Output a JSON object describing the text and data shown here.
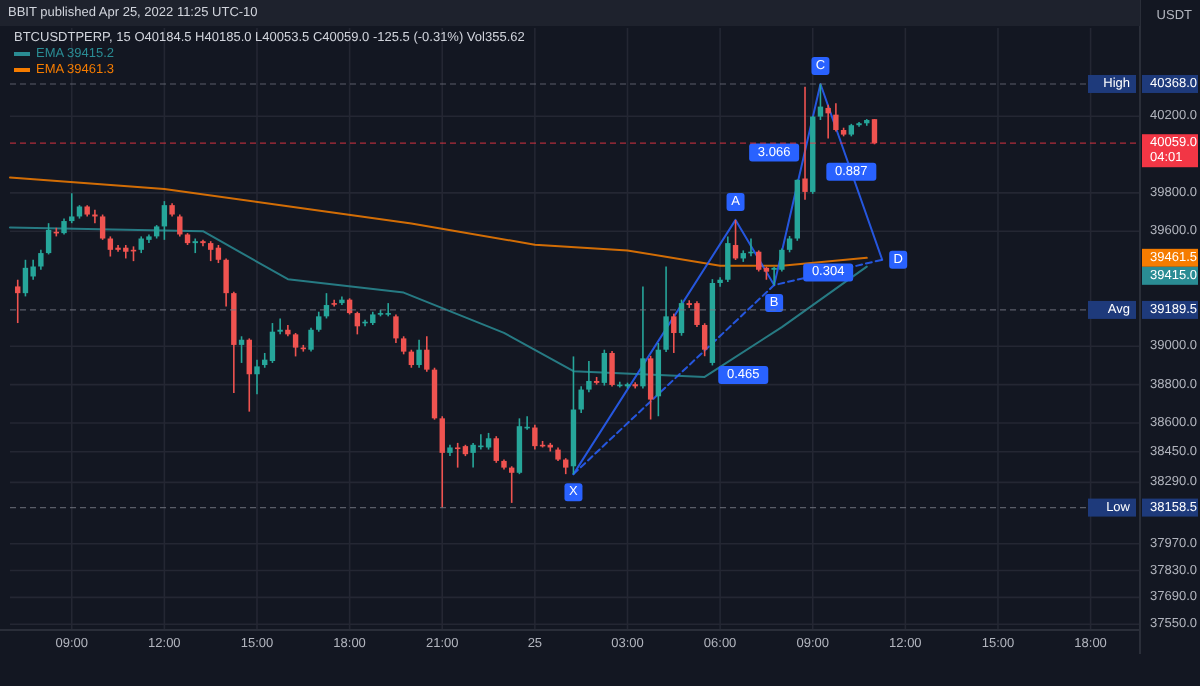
{
  "chart_data": {
    "type": "candlestick",
    "title": "BBIT published Apr 25, 2022 11:25 UTC-10",
    "subtitle": "BTCUSDTPERP, 15  O40184.5 H40185.0 L40053.5 C40059.0 -125.5 (-0.31%) Vol355.62",
    "ylabel": "USDT",
    "x": [
      "2022-04-24T07:15",
      "2022-04-24T07:30",
      "2022-04-24T07:45",
      "2022-04-24T08:00",
      "2022-04-24T08:15",
      "2022-04-24T08:30",
      "2022-04-24T08:45",
      "2022-04-24T09:00",
      "2022-04-24T09:15",
      "2022-04-24T09:30",
      "2022-04-24T09:45",
      "2022-04-24T10:00",
      "2022-04-24T10:15",
      "2022-04-24T10:30",
      "2022-04-24T10:45",
      "2022-04-24T11:00",
      "2022-04-24T11:15",
      "2022-04-24T11:30",
      "2022-04-24T11:45",
      "2022-04-24T12:00",
      "2022-04-24T12:15",
      "2022-04-24T12:30",
      "2022-04-24T12:45",
      "2022-04-24T13:00",
      "2022-04-24T13:15",
      "2022-04-24T13:30",
      "2022-04-24T13:45",
      "2022-04-24T14:00",
      "2022-04-24T14:15",
      "2022-04-24T14:30",
      "2022-04-24T14:45",
      "2022-04-24T15:00",
      "2022-04-24T15:15",
      "2022-04-24T15:30",
      "2022-04-24T15:45",
      "2022-04-24T16:00",
      "2022-04-24T16:15",
      "2022-04-24T16:30",
      "2022-04-24T16:45",
      "2022-04-24T17:00",
      "2022-04-24T17:15",
      "2022-04-24T17:30",
      "2022-04-24T17:45",
      "2022-04-24T18:00",
      "2022-04-24T18:15",
      "2022-04-24T18:30",
      "2022-04-24T18:45",
      "2022-04-24T19:00",
      "2022-04-24T19:15",
      "2022-04-24T19:30",
      "2022-04-24T19:45",
      "2022-04-24T20:00",
      "2022-04-24T20:15",
      "2022-04-24T20:30",
      "2022-04-24T20:45",
      "2022-04-24T21:00",
      "2022-04-24T21:15",
      "2022-04-24T21:30",
      "2022-04-24T21:45",
      "2022-04-24T22:00",
      "2022-04-24T22:15",
      "2022-04-24T22:30",
      "2022-04-24T22:45",
      "2022-04-24T23:00",
      "2022-04-24T23:15",
      "2022-04-24T23:30",
      "2022-04-24T23:45",
      "2022-04-25T00:00",
      "2022-04-25T00:15",
      "2022-04-25T00:30",
      "2022-04-25T00:45",
      "2022-04-25T01:00",
      "2022-04-25T01:15",
      "2022-04-25T01:30",
      "2022-04-25T01:45",
      "2022-04-25T02:00",
      "2022-04-25T02:15",
      "2022-04-25T02:30",
      "2022-04-25T02:45",
      "2022-04-25T03:00",
      "2022-04-25T03:15",
      "2022-04-25T03:30",
      "2022-04-25T03:45",
      "2022-04-25T04:00",
      "2022-04-25T04:15",
      "2022-04-25T04:30",
      "2022-04-25T04:45",
      "2022-04-25T05:00",
      "2022-04-25T05:15",
      "2022-04-25T05:30",
      "2022-04-25T05:45",
      "2022-04-25T06:00",
      "2022-04-25T06:15",
      "2022-04-25T06:30",
      "2022-04-25T06:45",
      "2022-04-25T07:00",
      "2022-04-25T07:15",
      "2022-04-25T07:30",
      "2022-04-25T07:45",
      "2022-04-25T08:00",
      "2022-04-25T08:15",
      "2022-04-25T08:30",
      "2022-04-25T08:45",
      "2022-04-25T09:00",
      "2022-04-25T09:15",
      "2022-04-25T09:30",
      "2022-04-25T09:45",
      "2022-04-25T10:00",
      "2022-04-25T10:15",
      "2022-04-25T10:30",
      "2022-04-25T10:45",
      "2022-04-25T11:00"
    ],
    "ohlc": [
      [
        39312,
        39347,
        39121,
        39277
      ],
      [
        39277,
        39451,
        39260,
        39409
      ],
      [
        39364,
        39451,
        39347,
        39416
      ],
      [
        39416,
        39503,
        39399,
        39486
      ],
      [
        39486,
        39642,
        39479,
        39607
      ],
      [
        39597,
        39618,
        39573,
        39590
      ],
      [
        39590,
        39666,
        39583,
        39653
      ],
      [
        39653,
        39798,
        39642,
        39677
      ],
      [
        39677,
        39736,
        39666,
        39729
      ],
      [
        39729,
        39736,
        39677,
        39687
      ],
      [
        39687,
        39712,
        39642,
        39677
      ],
      [
        39677,
        39687,
        39555,
        39562
      ],
      [
        39562,
        39573,
        39468,
        39503
      ],
      [
        39514,
        39528,
        39493,
        39503
      ],
      [
        39514,
        39528,
        39458,
        39493
      ],
      [
        39503,
        39521,
        39444,
        39500
      ],
      [
        39503,
        39573,
        39486,
        39562
      ],
      [
        39555,
        39583,
        39538,
        39573
      ],
      [
        39573,
        39632,
        39562,
        39625
      ],
      [
        39625,
        39757,
        39555,
        39736
      ],
      [
        39736,
        39746,
        39677,
        39687
      ],
      [
        39677,
        39687,
        39573,
        39583
      ],
      [
        39583,
        39590,
        39528,
        39538
      ],
      [
        39538,
        39562,
        39486,
        39548
      ],
      [
        39548,
        39555,
        39521,
        39538
      ],
      [
        39538,
        39548,
        39444,
        39503
      ],
      [
        39514,
        39528,
        39434,
        39451
      ],
      [
        39451,
        39458,
        39208,
        39277
      ],
      [
        39277,
        39284,
        38756,
        39007
      ],
      [
        39007,
        39052,
        38913,
        39034
      ],
      [
        39034,
        39041,
        38659,
        38854
      ],
      [
        38854,
        38930,
        38750,
        38895
      ],
      [
        38902,
        38965,
        38888,
        38930
      ],
      [
        38923,
        39121,
        38913,
        39076
      ],
      [
        39076,
        39145,
        39062,
        39086
      ],
      [
        39086,
        39111,
        39052,
        39062
      ],
      [
        39062,
        39069,
        38947,
        38993
      ],
      [
        38993,
        39007,
        38972,
        38989
      ],
      [
        38982,
        39097,
        38972,
        39086
      ],
      [
        39086,
        39180,
        39076,
        39156
      ],
      [
        39156,
        39277,
        39145,
        39215
      ],
      [
        39225,
        39243,
        39208,
        39222
      ],
      [
        39225,
        39260,
        39215,
        39243
      ],
      [
        39243,
        39250,
        39166,
        39173
      ],
      [
        39173,
        39180,
        39062,
        39104
      ],
      [
        39121,
        39138,
        39104,
        39128
      ],
      [
        39121,
        39180,
        39111,
        39166
      ],
      [
        39166,
        39190,
        39156,
        39173
      ],
      [
        39166,
        39225,
        39156,
        39173
      ],
      [
        39156,
        39166,
        39017,
        39041
      ],
      [
        39041,
        39052,
        38958,
        38972
      ],
      [
        38972,
        38982,
        38888,
        38902
      ],
      [
        38902,
        39034,
        38888,
        38982
      ],
      [
        38982,
        39052,
        38867,
        38878
      ],
      [
        38878,
        38888,
        38617,
        38624
      ],
      [
        38624,
        38635,
        38158.5,
        38444
      ],
      [
        38444,
        38486,
        38427,
        38472
      ],
      [
        38472,
        38496,
        38367,
        38468
      ],
      [
        38479,
        38486,
        38427,
        38437
      ],
      [
        38444,
        38496,
        38367,
        38486
      ],
      [
        38479,
        38541,
        38461,
        38482
      ],
      [
        38472,
        38548,
        38461,
        38520
      ],
      [
        38520,
        38531,
        38392,
        38402
      ],
      [
        38402,
        38409,
        38357,
        38367
      ],
      [
        38367,
        38374,
        38183,
        38340
      ],
      [
        38340,
        38624,
        38333,
        38583
      ],
      [
        38576,
        38635,
        38565,
        38580
      ],
      [
        38576,
        38590,
        38461,
        38479
      ],
      [
        38486,
        38506,
        38472,
        38483
      ],
      [
        38486,
        38496,
        38451,
        38472
      ],
      [
        38461,
        38472,
        38402,
        38409
      ],
      [
        38409,
        38416,
        38333,
        38367
      ],
      [
        38374,
        38947,
        38333,
        38670
      ],
      [
        38670,
        38791,
        38652,
        38774
      ],
      [
        38774,
        38923,
        38760,
        38819
      ],
      [
        38819,
        38840,
        38800,
        38809
      ],
      [
        38809,
        38982,
        38795,
        38965
      ],
      [
        38965,
        38975,
        38790,
        38798
      ],
      [
        38798,
        38815,
        38785,
        38800
      ],
      [
        38791,
        38810,
        38780,
        38802
      ],
      [
        38802,
        38812,
        38780,
        38791
      ],
      [
        38791,
        39312,
        38780,
        38937
      ],
      [
        38937,
        38950,
        38618,
        38722
      ],
      [
        38739,
        39017,
        38635,
        38982
      ],
      [
        38982,
        39416,
        38970,
        39156
      ],
      [
        39156,
        39170,
        38965,
        39069
      ],
      [
        39069,
        39243,
        39055,
        39225
      ],
      [
        39225,
        39240,
        39200,
        39215
      ],
      [
        39225,
        39235,
        39100,
        39111
      ],
      [
        39111,
        39120,
        38948,
        38982
      ],
      [
        38913,
        39350,
        38900,
        39330
      ],
      [
        39330,
        39360,
        39310,
        39347
      ],
      [
        39347,
        39573,
        39335,
        39538
      ],
      [
        39528,
        39659,
        39450,
        39458
      ],
      [
        39458,
        39500,
        39440,
        39486
      ],
      [
        39486,
        39562,
        39470,
        39493
      ],
      [
        39493,
        39500,
        39390,
        39399
      ],
      [
        39409,
        39415,
        39347,
        39389
      ],
      [
        39399,
        39415,
        39319,
        39409
      ],
      [
        39399,
        39510,
        39390,
        39503
      ],
      [
        39503,
        39575,
        39490,
        39562
      ],
      [
        39562,
        39870,
        39550,
        39868
      ],
      [
        39875,
        40354,
        39764,
        39805
      ],
      [
        39805,
        40200,
        39795,
        40198
      ],
      [
        40198,
        40368,
        40180,
        40250
      ],
      [
        40243,
        40260,
        40083,
        40215
      ],
      [
        40208,
        40267,
        40120,
        40128
      ],
      [
        40128,
        40140,
        40095,
        40104
      ],
      [
        40104,
        40160,
        40095,
        40153
      ],
      [
        40153,
        40170,
        40145,
        40163
      ],
      [
        40163,
        40185,
        40150,
        40180
      ],
      [
        40184.5,
        40185.0,
        40053.5,
        40059.0
      ]
    ],
    "colors": [
      "#ef5350",
      "#26a69a",
      "#26a69a",
      "#26a69a",
      "#26a69a",
      "#ef5350",
      "#26a69a",
      "#26a69a",
      "#26a69a",
      "#ef5350",
      "#ef5350",
      "#ef5350",
      "#ef5350",
      "#ef5350",
      "#ef5350",
      "#ef5350",
      "#26a69a",
      "#26a69a",
      "#26a69a",
      "#26a69a",
      "#ef5350",
      "#ef5350",
      "#ef5350",
      "#26a69a",
      "#ef5350",
      "#ef5350",
      "#ef5350",
      "#ef5350",
      "#ef5350",
      "#26a69a",
      "#ef5350",
      "#26a69a",
      "#26a69a",
      "#26a69a",
      "#26a69a",
      "#ef5350",
      "#ef5350",
      "#ef5350",
      "#26a69a",
      "#26a69a",
      "#26a69a",
      "#ef5350",
      "#26a69a",
      "#ef5350",
      "#ef5350",
      "#26a69a",
      "#26a69a",
      "#26a69a",
      "#26a69a",
      "#ef5350",
      "#ef5350",
      "#ef5350",
      "#26a69a",
      "#ef5350",
      "#ef5350",
      "#ef5350",
      "#26a69a",
      "#ef5350",
      "#ef5350",
      "#26a69a",
      "#26a69a",
      "#26a69a",
      "#ef5350",
      "#ef5350",
      "#ef5350",
      "#26a69a",
      "#26a69a",
      "#ef5350",
      "#ef5350",
      "#ef5350",
      "#ef5350",
      "#ef5350",
      "#26a69a",
      "#26a69a",
      "#26a69a",
      "#ef5350",
      "#26a69a",
      "#ef5350",
      "#26a69a",
      "#26a69a",
      "#ef5350",
      "#26a69a",
      "#ef5350",
      "#26a69a",
      "#26a69a",
      "#ef5350",
      "#26a69a",
      "#ef5350",
      "#ef5350",
      "#ef5350",
      "#26a69a",
      "#26a69a",
      "#26a69a",
      "#ef5350",
      "#26a69a",
      "#26a69a",
      "#ef5350",
      "#ef5350",
      "#26a69a",
      "#26a69a",
      "#26a69a",
      "#26a69a",
      "#ef5350",
      "#26a69a",
      "#26a69a",
      "#ef5350",
      "#ef5350",
      "#ef5350",
      "#26a69a",
      "#26a69a",
      "#26a69a",
      "#ef5350"
    ],
    "series": [
      {
        "type": "line",
        "name": "EMA 39415.2",
        "color": "#2a8c94",
        "x": [
          "2022-04-24T07:00",
          "2022-04-24T13:15",
          "2022-04-24T16:00",
          "2022-04-24T19:45",
          "2022-04-24T23:00",
          "2022-04-25T01:15",
          "2022-04-25T05:30",
          "2022-04-25T08:00",
          "2022-04-25T10:45"
        ],
        "values": [
          39620,
          39600,
          39350,
          39280,
          39070,
          38870,
          38840,
          39100,
          39415.2
        ]
      },
      {
        "type": "line",
        "name": "EMA 39461.3",
        "color": "#f57c00",
        "x": [
          "2022-04-24T07:00",
          "2022-04-24T12:00",
          "2022-04-24T16:00",
          "2022-04-24T20:00",
          "2022-04-25T00:00",
          "2022-04-25T03:00",
          "2022-04-25T06:00",
          "2022-04-25T08:00",
          "2022-04-25T10:45"
        ],
        "values": [
          39880,
          39820,
          39730,
          39640,
          39530,
          39500,
          39420,
          39420,
          39461.3
        ]
      },
      {
        "type": "line",
        "color": "#2962ff",
        "x": [
          "2022-04-25T01:15",
          "2022-04-25T06:30",
          "2022-04-25T07:45",
          "2022-04-25T09:15",
          "2022-04-25T11:15"
        ],
        "values": [
          38333,
          39659,
          39319,
          40368,
          39451
        ]
      },
      {
        "type": "line",
        "color": "#2962ff",
        "line_style": "dashed",
        "x": [
          "2022-04-25T01:15",
          "2022-04-25T07:45",
          "2022-04-25T11:15"
        ],
        "values": [
          38333,
          39319,
          39451
        ]
      }
    ],
    "legend": "top left",
    "grid": true,
    "xlim": [
      "2022-04-24T07:00",
      "2022-04-25T19:36"
    ],
    "xticks": [
      {
        "value": "2022-04-24T09:00",
        "label": "09:00"
      },
      {
        "value": "2022-04-24T12:00",
        "label": "12:00"
      },
      {
        "value": "2022-04-24T15:00",
        "label": "15:00"
      },
      {
        "value": "2022-04-24T18:00",
        "label": "18:00"
      },
      {
        "value": "2022-04-24T21:00",
        "label": "21:00"
      },
      {
        "value": "2022-04-25T00:00",
        "label": "25"
      },
      {
        "value": "2022-04-25T03:00",
        "label": "03:00"
      },
      {
        "value": "2022-04-25T06:00",
        "label": "06:00"
      },
      {
        "value": "2022-04-25T09:00",
        "label": "09:00"
      },
      {
        "value": "2022-04-25T12:00",
        "label": "12:00"
      },
      {
        "value": "2022-04-25T15:00",
        "label": "15:00"
      },
      {
        "value": "2022-04-25T18:00",
        "label": "18:00"
      }
    ],
    "ylim": [
      37520,
      40660
    ],
    "yticks": [
      {
        "value": 40200,
        "label": "40200.0"
      },
      {
        "value": 39800,
        "label": "39800.0"
      },
      {
        "value": 39600,
        "label": "39600.0"
      },
      {
        "value": 39000,
        "label": "39000.0"
      },
      {
        "value": 38800,
        "label": "38800.0"
      },
      {
        "value": 38600,
        "label": "38600.0"
      },
      {
        "value": 38450,
        "label": "38450.0"
      },
      {
        "value": 38290,
        "label": "38290.0"
      },
      {
        "value": 37970,
        "label": "37970.0"
      },
      {
        "value": 37830,
        "label": "37830.0"
      },
      {
        "value": 37690,
        "label": "37690.0"
      },
      {
        "value": 37550,
        "label": "37550.0"
      }
    ],
    "ref_lines": [
      {
        "axis": "y",
        "value": 40368.0,
        "label": "High",
        "line_style": "dashed"
      },
      {
        "axis": "y",
        "value": 39189.5,
        "label": "Avg",
        "line_style": "dashed"
      },
      {
        "axis": "y",
        "value": 38158.5,
        "label": "Low",
        "line_style": "dashed"
      },
      {
        "axis": "y",
        "value": 40059.0,
        "line_style": "dashed",
        "color": "#f23645"
      }
    ],
    "annotations": [
      {
        "text": "X",
        "x": "2022-04-25T01:15",
        "y": 38333
      },
      {
        "text": "A",
        "x": "2022-04-25T06:30",
        "y": 39659
      },
      {
        "text": "B",
        "x": "2022-04-25T07:45",
        "y": 39319
      },
      {
        "text": "C",
        "x": "2022-04-25T09:15",
        "y": 40368
      },
      {
        "text": "D",
        "x": "2022-04-25T11:15",
        "y": 39451
      },
      {
        "text": "0.465",
        "x": "2022-04-25T06:45",
        "y": 38850
      },
      {
        "text": "0.304",
        "x": "2022-04-25T09:30",
        "y": 39385
      },
      {
        "text": "3.066",
        "x": "2022-04-25T07:45",
        "y": 40010
      },
      {
        "text": "0.887",
        "x": "2022-04-25T10:15",
        "y": 39910
      },
      "40368.0",
      "39189.5",
      "38158.5",
      "40059.0",
      "04:01",
      "39415.0",
      "39461.5"
    ]
  }
}
